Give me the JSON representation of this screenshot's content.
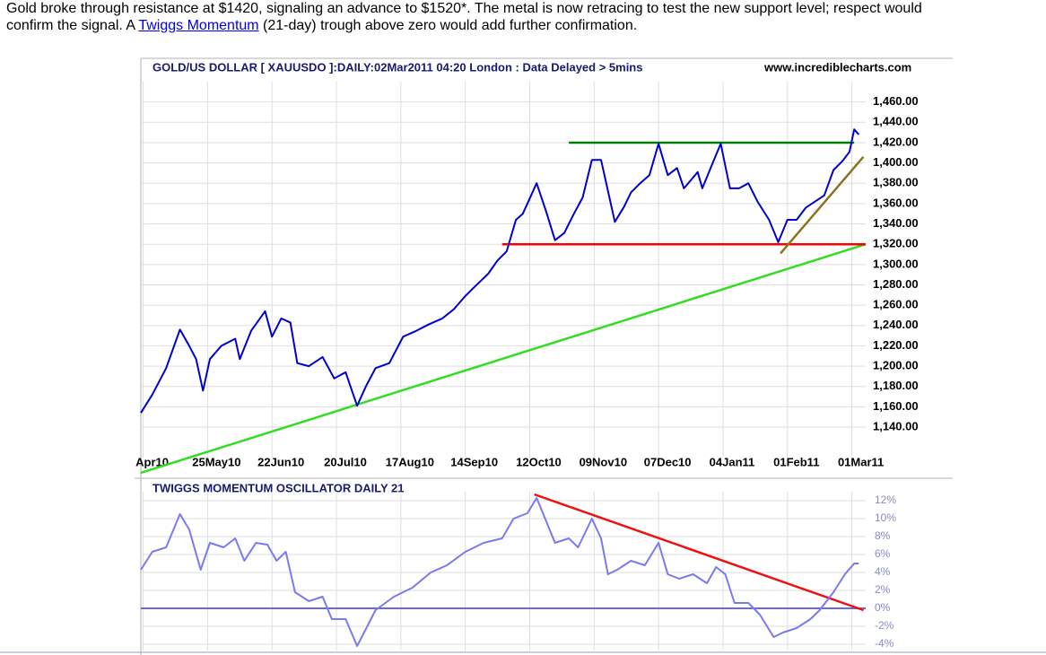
{
  "article": {
    "line1": "Gold broke through resistance at $1420, signaling an advance to $1520*. The metal is now retracing to test the new support level; respect would",
    "line2_before": "confirm the signal. A ",
    "link": "Twiggs Momentum",
    "line2_after": " (21-day) trough above zero would add further confirmation."
  },
  "chart_data": [
    {
      "type": "line",
      "title": "GOLD/US DOLLAR [ XAUUSDO ]:DAILY:02Mar2011 04:20 London : Data Delayed > 5mins",
      "source": "www.incrediblecharts.com",
      "color": "#0000cc",
      "x": [
        -1,
        4,
        10,
        16,
        20,
        23,
        26,
        29,
        34,
        40,
        42,
        47,
        53,
        56,
        60,
        64,
        67,
        72,
        78,
        83,
        88,
        93,
        97,
        101,
        107,
        113,
        118,
        124,
        130,
        135,
        140,
        144,
        150,
        154,
        158,
        162,
        165,
        171,
        175,
        179,
        183,
        187,
        191,
        195,
        199,
        205,
        209,
        212,
        216,
        220,
        224,
        228,
        232,
        235,
        241,
        243,
        247,
        251,
        255,
        259,
        263,
        267,
        272,
        276,
        280,
        284,
        288,
        292,
        296,
        300,
        304,
        307,
        309,
        311
      ],
      "values": [
        1154,
        1172,
        1198,
        1236,
        1220,
        1207,
        1176,
        1207,
        1220,
        1227,
        1207,
        1235,
        1254,
        1229,
        1247,
        1243,
        1203,
        1200,
        1209,
        1188,
        1194,
        1161,
        1181,
        1198,
        1203,
        1229,
        1234,
        1241,
        1247,
        1256,
        1269,
        1278,
        1291,
        1304,
        1313,
        1344,
        1350,
        1380,
        1353,
        1324,
        1331,
        1349,
        1366,
        1403,
        1403,
        1342,
        1357,
        1371,
        1380,
        1388,
        1419,
        1388,
        1395,
        1375,
        1391,
        1375,
        1397,
        1419,
        1375,
        1375,
        1380,
        1362,
        1344,
        1322,
        1344,
        1344,
        1356,
        1362,
        1368,
        1393,
        1402,
        1411,
        1433,
        1428
      ],
      "xlim": [
        -1,
        314
      ],
      "xticks": [
        {
          "value": 0,
          "label": "Apr10"
        },
        {
          "value": 28,
          "label": "25May10"
        },
        {
          "value": 56,
          "label": "22Jun10"
        },
        {
          "value": 84,
          "label": "20Jul10"
        },
        {
          "value": 112,
          "label": "17Aug10"
        },
        {
          "value": 140,
          "label": "14Sep10"
        },
        {
          "value": 168,
          "label": "12Oct10"
        },
        {
          "value": 196,
          "label": "09Nov10"
        },
        {
          "value": 224,
          "label": "07Dec10"
        },
        {
          "value": 252,
          "label": "04Jan11"
        },
        {
          "value": 280,
          "label": "01Feb11"
        },
        {
          "value": 308,
          "label": "01Mar11"
        }
      ],
      "ylim": [
        1110,
        1480
      ],
      "yticks": [
        {
          "value": 1140,
          "label": "1,140.00"
        },
        {
          "value": 1160,
          "label": "1,160.00"
        },
        {
          "value": 1180,
          "label": "1,180.00"
        },
        {
          "value": 1200,
          "label": "1,200.00"
        },
        {
          "value": 1220,
          "label": "1,220.00"
        },
        {
          "value": 1240,
          "label": "1,240.00"
        },
        {
          "value": 1260,
          "label": "1,260.00"
        },
        {
          "value": 1280,
          "label": "1,280.00"
        },
        {
          "value": 1300,
          "label": "1,300.00"
        },
        {
          "value": 1320,
          "label": "1,320.00"
        },
        {
          "value": 1340,
          "label": "1,340.00"
        },
        {
          "value": 1360,
          "label": "1,360.00"
        },
        {
          "value": 1380,
          "label": "1,380.00"
        },
        {
          "value": 1400,
          "label": "1,400.00"
        },
        {
          "value": 1420,
          "label": "1,420.00"
        },
        {
          "value": 1440,
          "label": "1,440.00"
        },
        {
          "value": 1460,
          "label": "1,460.00"
        }
      ],
      "grid": true,
      "lines": [
        {
          "color": "#33dd22",
          "points": [
            [
              -1,
              1095
            ],
            [
              314,
              1320
            ]
          ]
        },
        {
          "color": "#ff0000",
          "points": [
            [
              156,
              1320
            ],
            [
              314,
              1320
            ]
          ]
        },
        {
          "color": "#008000",
          "points": [
            [
              185,
              1420
            ],
            [
              309,
              1420
            ]
          ]
        },
        {
          "color": "#8b7320",
          "points": [
            [
              277,
              1311
            ],
            [
              313,
              1406
            ]
          ]
        }
      ]
    },
    {
      "type": "line",
      "title": "TWIGGS MOMENTUM OSCILLATOR DAILY 21",
      "color": "#7a7af0",
      "x": [
        -1,
        4,
        10,
        16,
        20,
        25,
        29,
        35,
        40,
        44,
        49,
        54,
        58,
        62,
        66,
        72,
        78,
        82,
        88,
        93,
        97,
        101,
        109,
        117,
        125,
        132,
        140,
        148,
        156,
        161,
        167,
        171,
        175,
        179,
        185,
        189,
        195,
        199,
        202,
        206,
        212,
        218,
        224,
        228,
        233,
        239,
        245,
        249,
        253,
        257,
        263,
        268,
        274,
        278,
        284,
        290,
        294,
        300,
        305,
        309,
        311
      ],
      "values": [
        4.3,
        6.3,
        6.8,
        10.5,
        8.8,
        4.3,
        7.3,
        6.8,
        7.8,
        5.3,
        7.3,
        7.1,
        5.3,
        6.3,
        1.8,
        0.8,
        1.3,
        -1.2,
        -1.2,
        -4.2,
        -2.2,
        -0.2,
        1.3,
        2.3,
        4.0,
        4.8,
        6.3,
        7.3,
        7.8,
        10.0,
        10.6,
        12.3,
        9.8,
        7.3,
        7.8,
        6.8,
        10.0,
        7.8,
        3.8,
        4.3,
        5.3,
        4.8,
        7.3,
        3.8,
        3.3,
        3.8,
        2.8,
        4.6,
        3.8,
        0.6,
        0.6,
        -0.7,
        -3.2,
        -2.7,
        -2.2,
        -1.2,
        -0.2,
        1.8,
        3.8,
        5.0,
        5.0
      ],
      "xlim": [
        -1,
        314
      ],
      "ylim": [
        -4.7,
        13
      ],
      "yticks": [
        {
          "value": -4,
          "label": "-4%"
        },
        {
          "value": -2,
          "label": "-2%"
        },
        {
          "value": 0,
          "label": "0%"
        },
        {
          "value": 2,
          "label": "2%"
        },
        {
          "value": 4,
          "label": "4%"
        },
        {
          "value": 6,
          "label": "6%"
        },
        {
          "value": 8,
          "label": "8%"
        },
        {
          "value": 10,
          "label": "10%"
        },
        {
          "value": 12,
          "label": "12%"
        }
      ],
      "grid": true,
      "zero_line_color": "#6a6ad8",
      "lines": [
        {
          "color": "#ee1111",
          "points": [
            [
              170,
              12.7
            ],
            [
              313,
              -0.2
            ]
          ]
        }
      ]
    }
  ]
}
